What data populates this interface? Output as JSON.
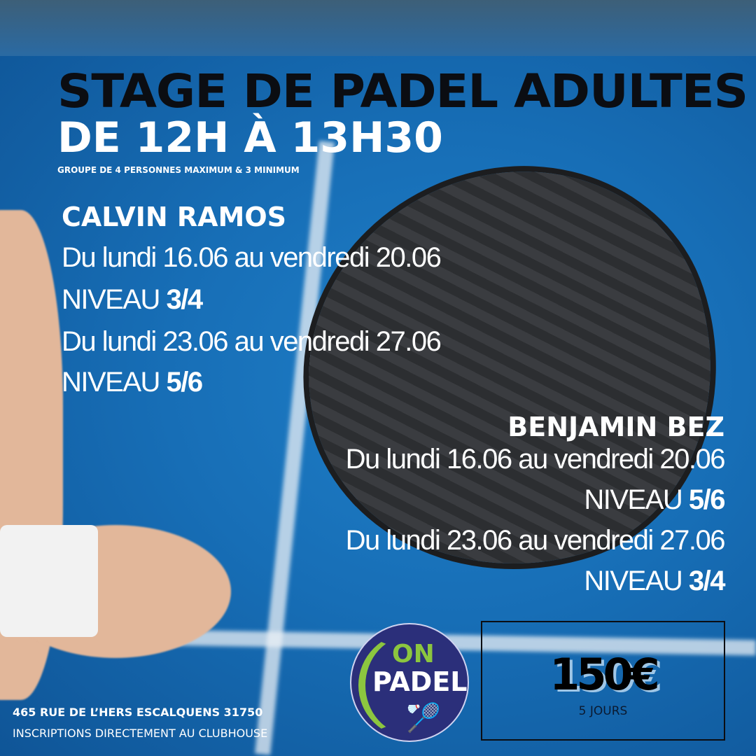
{
  "title_line1": "STAGE DE PADEL ADULTES",
  "title_line2": "DE 12H À 13H30",
  "subtitle": "GROUPE DE 4 PERSONNES MAXIMUM &  3 MINIMUM",
  "coaches": [
    {
      "name": "CALVIN RAMOS",
      "sessions": [
        {
          "dates": "Du lundi 16.06 au vendredi 20.06",
          "level_label": "NIVEAU ",
          "level": "3/4"
        },
        {
          "dates": "Du lundi 23.06 au vendredi 27.06",
          "level_label": "NIVEAU ",
          "level": "5/6"
        }
      ]
    },
    {
      "name": "BENJAMIN BEZ",
      "sessions": [
        {
          "dates": "Du lundi 16.06 au vendredi 20.06",
          "level_label": "NIVEAU ",
          "level": "5/6"
        },
        {
          "dates": "Du lundi 23.06 au vendredi 27.06",
          "level_label": "NIVEAU ",
          "level": "3/4"
        }
      ]
    }
  ],
  "logo": {
    "line1": "ON",
    "line2": "PADEL",
    "colors": {
      "bg": "#2b2f7a",
      "green": "#8cc63f"
    }
  },
  "price": {
    "amount": "150€",
    "duration": "5 JOURS"
  },
  "address": "465 RUE DE L’HERS ESCALQUENS 31750",
  "registration": "INSCRIPTIONS DIRECTEMENT AU CLUBHOUSE"
}
